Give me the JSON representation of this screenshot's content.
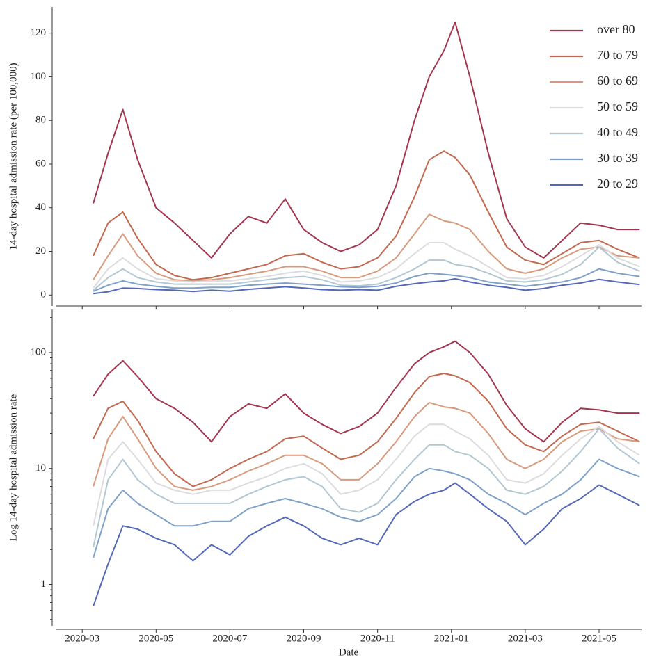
{
  "chart_data": [
    {
      "type": "line",
      "y_label": "14-day hospital admission rate (per 100,000)",
      "yscale": "linear",
      "legend": "upper right",
      "xlim": [
        1.28,
        17.15
      ],
      "ylim": [
        -5,
        132
      ],
      "yticks": [
        0,
        20,
        40,
        60,
        80,
        100,
        120
      ],
      "x": [
        2.3,
        2.7,
        3.1,
        3.5,
        4.0,
        4.5,
        5.0,
        5.5,
        6.0,
        6.5,
        7.0,
        7.5,
        8.0,
        8.5,
        9.0,
        9.5,
        10.0,
        10.5,
        11.0,
        11.4,
        11.8,
        12.1,
        12.5,
        13.0,
        13.5,
        14.0,
        14.5,
        15.0,
        15.5,
        16.0,
        16.5,
        17.1
      ],
      "series": [
        {
          "name": "over 80",
          "color": "#a3364f",
          "values": [
            42,
            65,
            85,
            62,
            40,
            33,
            25,
            17,
            28,
            36,
            33,
            44,
            30,
            24,
            20,
            23,
            30,
            50,
            80,
            100,
            112,
            125,
            100,
            65,
            35,
            22,
            17,
            25,
            33,
            32,
            30,
            30
          ]
        },
        {
          "name": "70 to 79",
          "color": "#c2684f",
          "values": [
            18,
            33,
            38,
            26,
            14,
            9,
            7,
            8,
            10,
            12,
            14,
            18,
            19,
            15,
            12,
            13,
            17,
            27,
            45,
            62,
            66,
            63,
            55,
            38,
            22,
            16,
            14,
            19,
            24,
            25,
            21,
            17
          ]
        },
        {
          "name": "60 to 69",
          "color": "#d89a7c",
          "values": [
            7,
            18,
            28,
            18,
            10,
            7,
            6.5,
            7,
            8,
            9.5,
            11,
            13,
            13,
            11,
            8,
            8,
            11,
            17,
            28,
            37,
            34,
            33,
            30,
            20,
            12,
            10,
            12,
            17,
            21,
            22,
            18,
            17
          ]
        },
        {
          "name": "50 to 59",
          "color": "#dcdcdf",
          "values": [
            3.2,
            12,
            17,
            12,
            7.5,
            6.5,
            6,
            6.5,
            6.5,
            7.5,
            8.5,
            10,
            11,
            9,
            6,
            6.5,
            8,
            12,
            19,
            24,
            24,
            21,
            18,
            13,
            8,
            7.5,
            9,
            13,
            18,
            23,
            17,
            13
          ]
        },
        {
          "name": "40 to 49",
          "color": "#b2c7d2",
          "values": [
            2.1,
            8,
            12,
            8,
            6,
            5,
            5,
            5,
            5,
            6,
            7,
            8,
            8.5,
            7,
            4.5,
            4.2,
            5,
            8,
            12,
            16,
            16,
            14,
            13,
            10,
            6.5,
            6,
            7,
            9.5,
            14,
            22,
            15,
            11
          ]
        },
        {
          "name": "30 to 39",
          "color": "#7ea1c8",
          "values": [
            1.7,
            4.5,
            6.5,
            5,
            4,
            3.2,
            3.2,
            3.5,
            3.5,
            4.5,
            5,
            5.5,
            5,
            4.5,
            3.8,
            3.5,
            4,
            5.5,
            8.5,
            10,
            9.5,
            9,
            8,
            6,
            5,
            4,
            5,
            6,
            8,
            12,
            10,
            8.5
          ]
        },
        {
          "name": "20 to 29",
          "color": "#5468b8",
          "values": [
            0.65,
            1.5,
            3.2,
            3,
            2.5,
            2.2,
            1.6,
            2.2,
            1.8,
            2.6,
            3.2,
            3.8,
            3.2,
            2.5,
            2.2,
            2.5,
            2.2,
            4,
            5.2,
            6,
            6.5,
            7.5,
            6,
            4.5,
            3.5,
            2.2,
            3,
            4.5,
            5.5,
            7.2,
            6,
            4.8
          ]
        }
      ]
    },
    {
      "type": "line",
      "y_label": "Log 14-day hospital admission rate",
      "x_label": "Date",
      "yscale": "log",
      "legend": "none",
      "xlim": [
        1.28,
        17.15
      ],
      "ylim": [
        0.44,
        235
      ],
      "yticks": [
        1,
        10,
        100
      ],
      "xticks": [
        {
          "value": 2,
          "label": "2020-03"
        },
        {
          "value": 4,
          "label": "2020-05"
        },
        {
          "value": 6,
          "label": "2020-07"
        },
        {
          "value": 8,
          "label": "2020-09"
        },
        {
          "value": 10,
          "label": "2020-11"
        },
        {
          "value": 12,
          "label": "2021-01"
        },
        {
          "value": 14,
          "label": "2021-03"
        },
        {
          "value": 16,
          "label": "2021-05"
        }
      ],
      "x": [
        2.3,
        2.7,
        3.1,
        3.5,
        4.0,
        4.5,
        5.0,
        5.5,
        6.0,
        6.5,
        7.0,
        7.5,
        8.0,
        8.5,
        9.0,
        9.5,
        10.0,
        10.5,
        11.0,
        11.4,
        11.8,
        12.1,
        12.5,
        13.0,
        13.5,
        14.0,
        14.5,
        15.0,
        15.5,
        16.0,
        16.5,
        17.1
      ],
      "series": [
        {
          "name": "over 80",
          "color": "#a3364f",
          "values": [
            42,
            65,
            85,
            62,
            40,
            33,
            25,
            17,
            28,
            36,
            33,
            44,
            30,
            24,
            20,
            23,
            30,
            50,
            80,
            100,
            112,
            125,
            100,
            65,
            35,
            22,
            17,
            25,
            33,
            32,
            30,
            30
          ]
        },
        {
          "name": "70 to 79",
          "color": "#c2684f",
          "values": [
            18,
            33,
            38,
            26,
            14,
            9,
            7,
            8,
            10,
            12,
            14,
            18,
            19,
            15,
            12,
            13,
            17,
            27,
            45,
            62,
            66,
            63,
            55,
            38,
            22,
            16,
            14,
            19,
            24,
            25,
            21,
            17
          ]
        },
        {
          "name": "60 to 69",
          "color": "#d89a7c",
          "values": [
            7,
            18,
            28,
            18,
            10,
            7,
            6.5,
            7,
            8,
            9.5,
            11,
            13,
            13,
            11,
            8,
            8,
            11,
            17,
            28,
            37,
            34,
            33,
            30,
            20,
            12,
            10,
            12,
            17,
            21,
            22,
            18,
            17
          ]
        },
        {
          "name": "50 to 59",
          "color": "#dcdcdf",
          "values": [
            3.2,
            12,
            17,
            12,
            7.5,
            6.5,
            6,
            6.5,
            6.5,
            7.5,
            8.5,
            10,
            11,
            9,
            6,
            6.5,
            8,
            12,
            19,
            24,
            24,
            21,
            18,
            13,
            8,
            7.5,
            9,
            13,
            18,
            23,
            17,
            13
          ]
        },
        {
          "name": "40 to 49",
          "color": "#b2c7d2",
          "values": [
            2.1,
            8,
            12,
            8,
            6,
            5,
            5,
            5,
            5,
            6,
            7,
            8,
            8.5,
            7,
            4.5,
            4.2,
            5,
            8,
            12,
            16,
            16,
            14,
            13,
            10,
            6.5,
            6,
            7,
            9.5,
            14,
            22,
            15,
            11
          ]
        },
        {
          "name": "30 to 39",
          "color": "#7ea1c8",
          "values": [
            1.7,
            4.5,
            6.5,
            5,
            4,
            3.2,
            3.2,
            3.5,
            3.5,
            4.5,
            5,
            5.5,
            5,
            4.5,
            3.8,
            3.5,
            4,
            5.5,
            8.5,
            10,
            9.5,
            9,
            8,
            6,
            5,
            4,
            5,
            6,
            8,
            12,
            10,
            8.5
          ]
        },
        {
          "name": "20 to 29",
          "color": "#5468b8",
          "values": [
            0.65,
            1.5,
            3.2,
            3,
            2.5,
            2.2,
            1.6,
            2.2,
            1.8,
            2.6,
            3.2,
            3.8,
            3.2,
            2.5,
            2.2,
            2.5,
            2.2,
            4,
            5.2,
            6,
            6.5,
            7.5,
            6,
            4.5,
            3.5,
            2.2,
            3,
            4.5,
            5.5,
            7.2,
            6,
            4.8
          ]
        }
      ]
    }
  ]
}
